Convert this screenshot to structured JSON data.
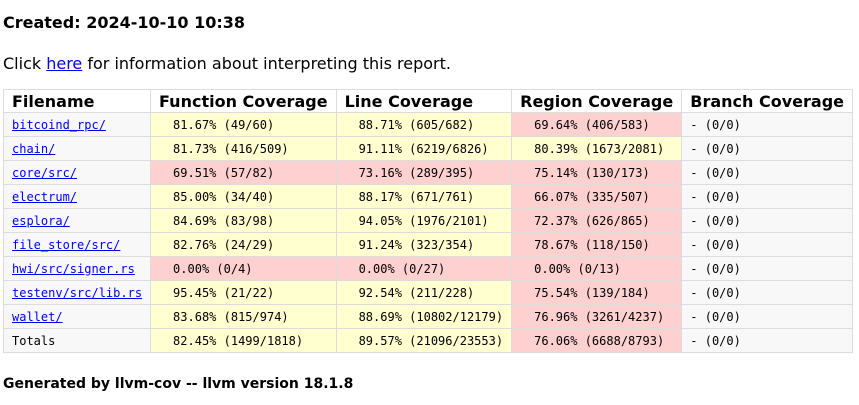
{
  "header": {
    "created": "Created: 2024-10-10 10:38",
    "info_prefix": "Click ",
    "info_link": "here",
    "info_suffix": " for information about interpreting this report."
  },
  "table": {
    "columns": [
      "Filename",
      "Function Coverage",
      "Line Coverage",
      "Region Coverage",
      "Branch Coverage"
    ],
    "rows": [
      {
        "file": "bitcoind_rpc/",
        "fn": "81.67% (49/60)",
        "fn_level": "hi",
        "line": "88.71% (605/682)",
        "line_level": "hi",
        "region": "69.64% (406/583)",
        "region_level": "lo",
        "branch": "- (0/0)"
      },
      {
        "file": "chain/",
        "fn": "81.73% (416/509)",
        "fn_level": "hi",
        "line": "91.11% (6219/6826)",
        "line_level": "hi",
        "region": "80.39% (1673/2081)",
        "region_level": "hi",
        "branch": "- (0/0)"
      },
      {
        "file": "core/src/",
        "fn": "69.51% (57/82)",
        "fn_level": "lo",
        "line": "73.16% (289/395)",
        "line_level": "lo",
        "region": "75.14% (130/173)",
        "region_level": "lo",
        "branch": "- (0/0)"
      },
      {
        "file": "electrum/",
        "fn": "85.00% (34/40)",
        "fn_level": "hi",
        "line": "88.17% (671/761)",
        "line_level": "hi",
        "region": "66.07% (335/507)",
        "region_level": "lo",
        "branch": "- (0/0)"
      },
      {
        "file": "esplora/",
        "fn": "84.69% (83/98)",
        "fn_level": "hi",
        "line": "94.05% (1976/2101)",
        "line_level": "hi",
        "region": "72.37% (626/865)",
        "region_level": "lo",
        "branch": "- (0/0)"
      },
      {
        "file": "file_store/src/",
        "fn": "82.76% (24/29)",
        "fn_level": "hi",
        "line": "91.24% (323/354)",
        "line_level": "hi",
        "region": "78.67% (118/150)",
        "region_level": "lo",
        "branch": "- (0/0)"
      },
      {
        "file": "hwi/src/signer.rs",
        "fn": "0.00% (0/4)",
        "fn_level": "lo",
        "line": "0.00% (0/27)",
        "line_level": "lo",
        "region": "0.00% (0/13)",
        "region_level": "lo",
        "branch": "- (0/0)"
      },
      {
        "file": "testenv/src/lib.rs",
        "fn": "95.45% (21/22)",
        "fn_level": "hi",
        "line": "92.54% (211/228)",
        "line_level": "hi",
        "region": "75.54% (139/184)",
        "region_level": "lo",
        "branch": "- (0/0)"
      },
      {
        "file": "wallet/",
        "fn": "83.68% (815/974)",
        "fn_level": "hi",
        "line": "88.69% (10802/12179)",
        "line_level": "hi",
        "region": "76.96% (3261/4237)",
        "region_level": "lo",
        "branch": "- (0/0)"
      }
    ],
    "totals": {
      "file": "Totals",
      "fn": "82.45% (1499/1818)",
      "fn_level": "hi",
      "line": "89.57% (21096/23553)",
      "line_level": "hi",
      "region": "76.06% (6688/8793)",
      "region_level": "lo",
      "branch": "- (0/0)"
    }
  },
  "footer": {
    "text": "Generated by llvm-cov -- llvm version 18.1.8"
  },
  "colors": {
    "high": "#ffffd0",
    "low": "#ffd0d0",
    "none": "#f8f8f8",
    "link": "#0000ee"
  }
}
